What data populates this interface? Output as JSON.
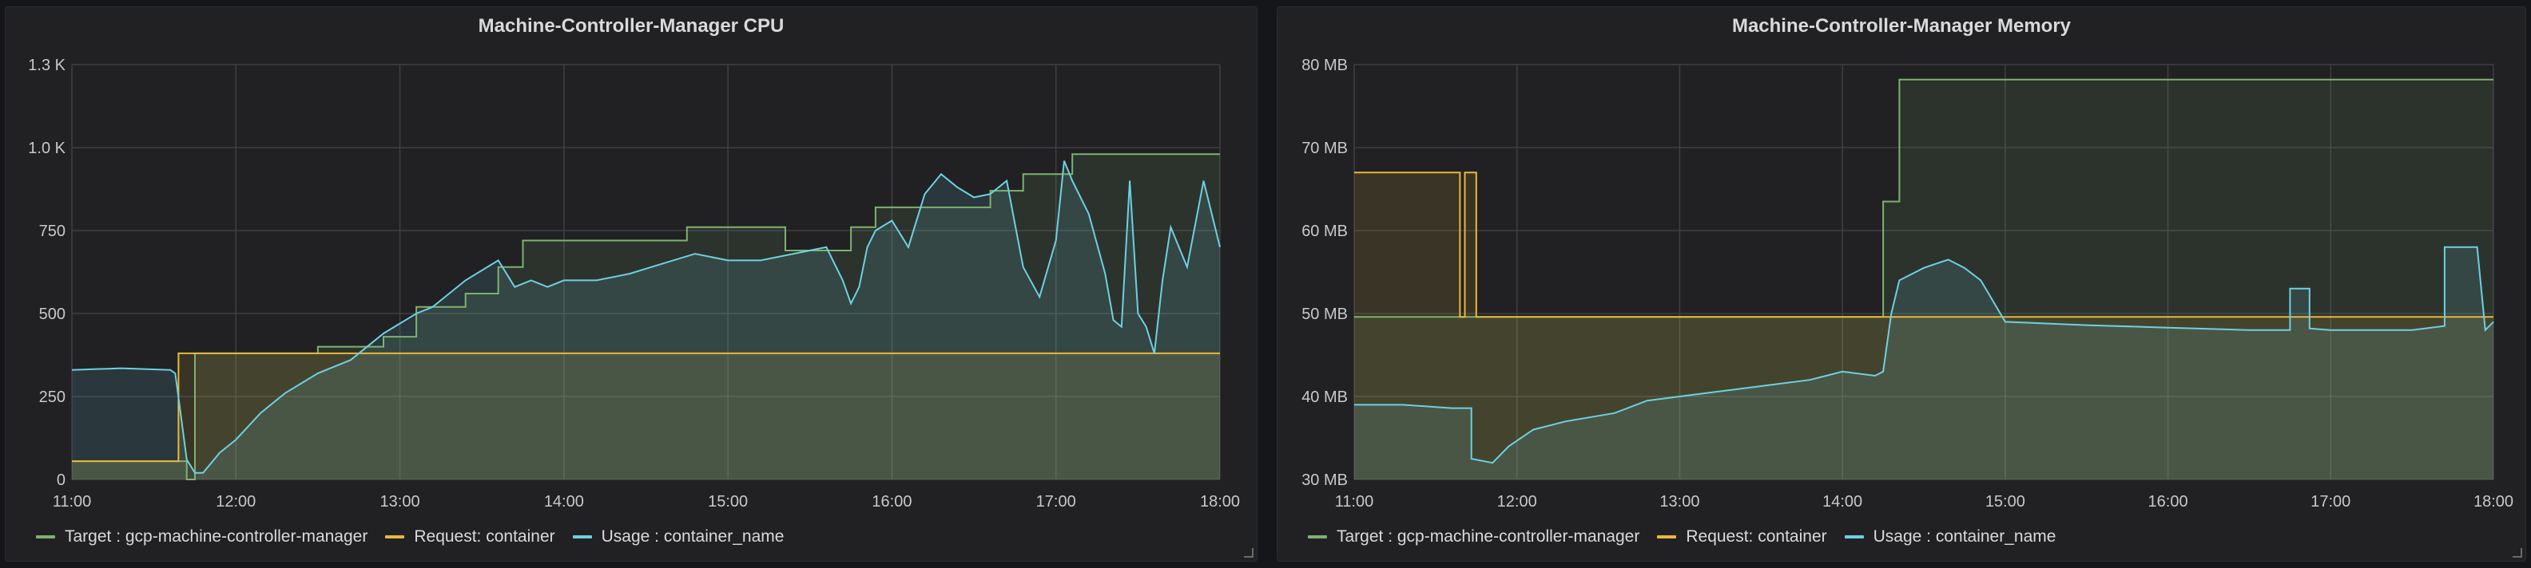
{
  "colors": {
    "target": "#7eb26d",
    "request": "#eab839",
    "usage": "#6ed0e0",
    "grid": "#3f3f44"
  },
  "chart_data": [
    {
      "type": "line",
      "title": "Machine-Controller-Manager CPU",
      "xlabel": "",
      "ylabel": "",
      "x_ticks": [
        "11:00",
        "12:00",
        "13:00",
        "14:00",
        "15:00",
        "16:00",
        "17:00",
        "18:00"
      ],
      "y_ticks": [
        {
          "v": 0,
          "label": "0"
        },
        {
          "v": 250,
          "label": "250"
        },
        {
          "v": 500,
          "label": "500"
        },
        {
          "v": 750,
          "label": "750"
        },
        {
          "v": 1000,
          "label": "1.0 K"
        },
        {
          "v": 1250,
          "label": "1.3 K"
        }
      ],
      "ylim": [
        0,
        1250
      ],
      "grid": true,
      "legend_position": "bottom-left",
      "series": [
        {
          "name": "Target : gcp-machine-controller-manager",
          "color": "#7eb26d",
          "x": [
            11.0,
            11.7,
            11.7,
            11.75,
            11.75,
            12.0,
            12.5,
            12.5,
            12.9,
            12.9,
            13.1,
            13.1,
            13.4,
            13.4,
            13.6,
            13.6,
            13.75,
            13.75,
            14.75,
            14.75,
            15.35,
            15.35,
            15.75,
            15.75,
            15.9,
            15.9,
            16.6,
            16.6,
            16.8,
            16.8,
            17.1,
            17.1,
            18.0
          ],
          "y": [
            55,
            55,
            0,
            0,
            380,
            380,
            380,
            400,
            400,
            430,
            430,
            520,
            520,
            560,
            560,
            640,
            640,
            720,
            720,
            760,
            760,
            690,
            690,
            760,
            760,
            820,
            820,
            870,
            870,
            920,
            920,
            980,
            980
          ]
        },
        {
          "name": "Request: container",
          "color": "#eab839",
          "x": [
            11.0,
            11.65,
            11.65,
            11.75,
            11.75,
            18.0
          ],
          "y": [
            55,
            55,
            380,
            380,
            380,
            380
          ]
        },
        {
          "name": "Usage : container_name",
          "color": "#6ed0e0",
          "x": [
            11.0,
            11.3,
            11.6,
            11.63,
            11.66,
            11.7,
            11.75,
            11.8,
            11.9,
            12.0,
            12.15,
            12.3,
            12.5,
            12.7,
            12.9,
            13.0,
            13.1,
            13.2,
            13.3,
            13.4,
            13.5,
            13.6,
            13.7,
            13.8,
            13.9,
            14.0,
            14.2,
            14.4,
            14.6,
            14.8,
            15.0,
            15.2,
            15.4,
            15.6,
            15.7,
            15.75,
            15.8,
            15.85,
            15.9,
            16.0,
            16.1,
            16.2,
            16.3,
            16.4,
            16.5,
            16.6,
            16.7,
            16.8,
            16.9,
            17.0,
            17.05,
            17.1,
            17.2,
            17.3,
            17.35,
            17.4,
            17.45,
            17.5,
            17.55,
            17.6,
            17.65,
            17.7,
            17.8,
            17.9,
            18.0
          ],
          "y": [
            330,
            335,
            330,
            320,
            210,
            60,
            20,
            20,
            80,
            120,
            200,
            260,
            320,
            360,
            440,
            470,
            500,
            520,
            560,
            600,
            630,
            660,
            580,
            600,
            580,
            600,
            600,
            620,
            650,
            680,
            660,
            660,
            680,
            700,
            600,
            530,
            580,
            700,
            750,
            780,
            700,
            860,
            920,
            880,
            850,
            860,
            900,
            640,
            550,
            720,
            960,
            900,
            800,
            620,
            480,
            460,
            900,
            500,
            460,
            380,
            600,
            760,
            640,
            900,
            700
          ]
        }
      ]
    },
    {
      "type": "line",
      "title": "Machine-Controller-Manager Memory",
      "xlabel": "",
      "ylabel": "",
      "x_ticks": [
        "11:00",
        "12:00",
        "13:00",
        "14:00",
        "15:00",
        "16:00",
        "17:00",
        "18:00"
      ],
      "y_ticks": [
        {
          "v": 30,
          "label": "30 MB"
        },
        {
          "v": 40,
          "label": "40 MB"
        },
        {
          "v": 50,
          "label": "50 MB"
        },
        {
          "v": 60,
          "label": "60 MB"
        },
        {
          "v": 70,
          "label": "70 MB"
        },
        {
          "v": 80,
          "label": "80 MB"
        }
      ],
      "ylim": [
        30,
        80
      ],
      "grid": true,
      "legend_position": "bottom-left",
      "series": [
        {
          "name": "Target : gcp-machine-controller-manager",
          "color": "#7eb26d",
          "x": [
            11.0,
            14.25,
            14.25,
            14.35,
            14.35,
            18.0
          ],
          "y": [
            49.6,
            49.6,
            63.5,
            63.5,
            78.2,
            78.2
          ]
        },
        {
          "name": "Request: container",
          "color": "#eab839",
          "x": [
            11.0,
            11.65,
            11.65,
            11.68,
            11.68,
            11.75,
            11.75,
            18.0
          ],
          "y": [
            67,
            67,
            49.6,
            49.6,
            67,
            67,
            49.6,
            49.6
          ]
        },
        {
          "name": "Usage : container_name",
          "color": "#6ed0e0",
          "x": [
            11.0,
            11.3,
            11.6,
            11.72,
            11.72,
            11.85,
            11.95,
            12.1,
            12.3,
            12.6,
            12.8,
            13.0,
            13.2,
            13.4,
            13.6,
            13.8,
            14.0,
            14.2,
            14.25,
            14.3,
            14.35,
            14.5,
            14.65,
            14.75,
            14.85,
            15.0,
            15.5,
            16.0,
            16.5,
            16.75,
            16.75,
            16.87,
            16.87,
            17.0,
            17.5,
            17.7,
            17.7,
            17.9,
            17.95,
            18.0
          ],
          "y": [
            39,
            39,
            38.6,
            38.6,
            32.5,
            32,
            34,
            36,
            37,
            38,
            39.5,
            40,
            40.5,
            41,
            41.5,
            42,
            43,
            42.5,
            43,
            50,
            54,
            55.5,
            56.5,
            55.5,
            54,
            49,
            48.6,
            48.3,
            48,
            48,
            53,
            53,
            48.2,
            48,
            48,
            48.5,
            58,
            58,
            48,
            49
          ]
        }
      ]
    }
  ],
  "panels": {
    "cpu": {
      "title": "Machine-Controller-Manager CPU",
      "legend": [
        "Target : gcp-machine-controller-manager",
        "Request: container",
        "Usage : container_name"
      ]
    },
    "mem": {
      "title": "Machine-Controller-Manager Memory",
      "legend": [
        "Target : gcp-machine-controller-manager",
        "Request: container",
        "Usage : container_name"
      ]
    }
  }
}
